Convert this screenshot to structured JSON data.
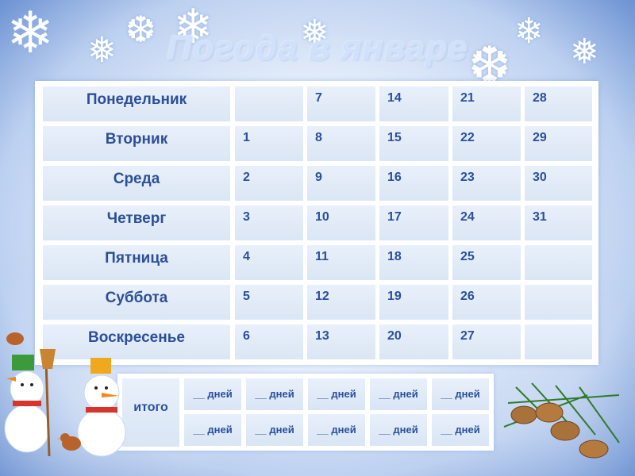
{
  "title": "Погода в январе",
  "days": [
    {
      "name": "Понедельник",
      "nums": [
        "",
        "7",
        "14",
        "21",
        "28"
      ]
    },
    {
      "name": "Вторник",
      "nums": [
        "1",
        "8",
        "15",
        "22",
        "29"
      ]
    },
    {
      "name": "Среда",
      "nums": [
        "2",
        "9",
        "16",
        "23",
        "30"
      ]
    },
    {
      "name": "Четверг",
      "nums": [
        "3",
        "10",
        "17",
        "24",
        "31"
      ]
    },
    {
      "name": "Пятница",
      "nums": [
        "4",
        "11",
        "18",
        "25",
        ""
      ]
    },
    {
      "name": "Суббота",
      "nums": [
        "5",
        "12",
        "19",
        "26",
        ""
      ]
    },
    {
      "name": "Воскресенье",
      "nums": [
        "6",
        "13",
        "20",
        "27",
        ""
      ]
    }
  ],
  "total": {
    "label": "итого",
    "row1": [
      "__ дней",
      "__ дней",
      "__ дней",
      "__ дней",
      "__ дней"
    ],
    "row2": [
      "__ дней",
      "__ дней",
      "__ дней",
      "__ дней",
      "__ дней"
    ]
  },
  "decor": {
    "snowflake_icon": "snowflake-icon",
    "snowman_icon": "snowman-icon",
    "bird_icon": "bird-icon",
    "pinecone_icon": "pinecone-icon"
  }
}
